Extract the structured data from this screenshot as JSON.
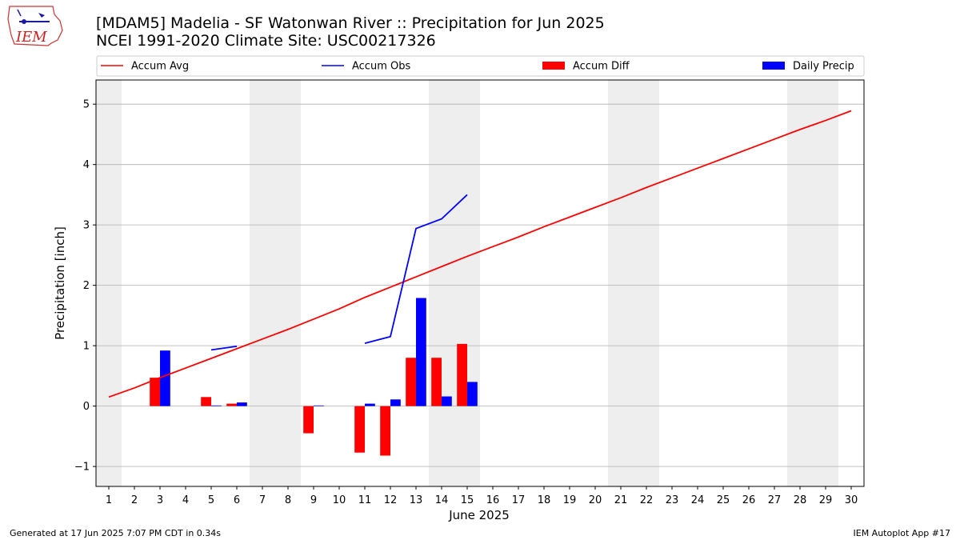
{
  "logo": {
    "text": "IEM"
  },
  "footer": {
    "generated": "Generated at 17 Jun 2025 7:07 PM CDT in 0.34s",
    "app": "IEM Autoplot App #17"
  },
  "colors": {
    "avg": "#ff0000",
    "obs": "#0000ff",
    "diff": "#ff0000",
    "daily": "#0000ff",
    "weekend": "#eeeeee",
    "grid": "#b0b0b0"
  },
  "chart_data": {
    "type": "bar",
    "title": "[MDAM5] Madelia - SF Watonwan River :: Precipitation for Jun 2025",
    "subtitle": "NCEI 1991-2020 Climate Site: USC00217326",
    "xlabel": "June 2025",
    "ylabel": "Precipitation [inch]",
    "xlim": [
      0.5,
      30.5
    ],
    "ylim": [
      -1.33,
      5.4
    ],
    "yticks": [
      -1,
      0,
      1,
      2,
      3,
      4,
      5
    ],
    "ytick_labels": [
      "−1",
      "0",
      "1",
      "2",
      "3",
      "4",
      "5"
    ],
    "x": [
      1,
      2,
      3,
      4,
      5,
      6,
      7,
      8,
      9,
      10,
      11,
      12,
      13,
      14,
      15,
      16,
      17,
      18,
      19,
      20,
      21,
      22,
      23,
      24,
      25,
      26,
      27,
      28,
      29,
      30
    ],
    "xtick_labels": [
      "1",
      "2",
      "3",
      "4",
      "5",
      "6",
      "7",
      "8",
      "9",
      "10",
      "11",
      "12",
      "13",
      "14",
      "15",
      "16",
      "17",
      "18",
      "19",
      "20",
      "21",
      "22",
      "23",
      "24",
      "25",
      "26",
      "27",
      "28",
      "29",
      "30"
    ],
    "weekend_days": [
      1,
      7,
      8,
      14,
      15,
      21,
      22,
      28,
      29
    ],
    "grid": "horizontal",
    "legend_position": "top",
    "legend": [
      {
        "label": "Accum Avg",
        "kind": "line",
        "color": "#ff0000"
      },
      {
        "label": "Accum Obs",
        "kind": "line",
        "color": "#0000ff"
      },
      {
        "label": "Accum Diff",
        "kind": "bar",
        "color": "#ff0000"
      },
      {
        "label": "Daily Precip",
        "kind": "bar",
        "color": "#0000ff"
      }
    ],
    "series": [
      {
        "name": "Accum Avg",
        "kind": "line",
        "color": "#ff0000",
        "values": [
          0.15,
          0.3,
          0.47,
          0.63,
          0.79,
          0.95,
          1.11,
          1.27,
          1.44,
          1.61,
          1.8,
          1.97,
          2.14,
          2.31,
          2.48,
          2.64,
          2.8,
          2.97,
          3.13,
          3.29,
          3.45,
          3.62,
          3.78,
          3.94,
          4.1,
          4.26,
          4.42,
          4.58,
          4.73,
          4.89
        ]
      },
      {
        "name": "Accum Obs",
        "kind": "line",
        "color": "#0000ff",
        "values": [
          null,
          null,
          null,
          null,
          0.93,
          0.99,
          null,
          null,
          null,
          null,
          1.04,
          1.15,
          2.94,
          3.1,
          3.5,
          null,
          null,
          null,
          null,
          null,
          null,
          null,
          null,
          null,
          null,
          null,
          null,
          null,
          null,
          null
        ]
      },
      {
        "name": "Accum Diff",
        "kind": "bar",
        "color": "#ff0000",
        "values": [
          null,
          null,
          0.47,
          null,
          0.15,
          0.04,
          null,
          null,
          -0.45,
          null,
          -0.77,
          -0.82,
          0.8,
          0.8,
          1.03,
          null,
          null,
          null,
          null,
          null,
          null,
          null,
          null,
          null,
          null,
          null,
          null,
          null,
          null,
          null
        ]
      },
      {
        "name": "Daily Precip",
        "kind": "bar",
        "color": "#0000ff",
        "values": [
          null,
          null,
          0.92,
          null,
          0.01,
          0.06,
          null,
          null,
          0.01,
          null,
          0.04,
          0.11,
          1.79,
          0.16,
          0.4,
          null,
          null,
          null,
          null,
          null,
          null,
          null,
          null,
          null,
          null,
          null,
          null,
          null,
          null,
          null
        ]
      }
    ]
  }
}
